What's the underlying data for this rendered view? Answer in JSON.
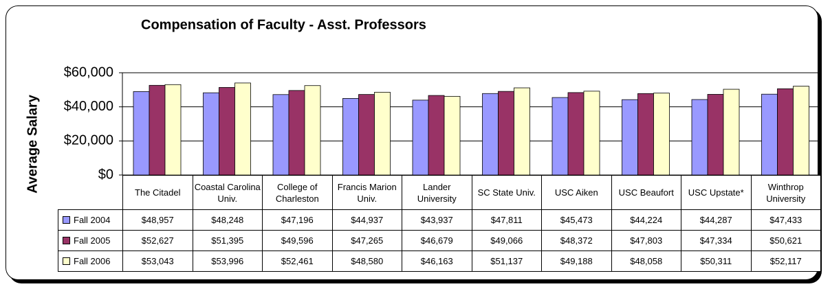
{
  "chart_data": {
    "type": "bar",
    "title": "Compensation of Faculty - Asst. Professors",
    "y_label": "Average Salary",
    "categories": [
      "The Citadel",
      "Coastal Carolina Univ.",
      "College of Charleston",
      "Francis Marion Univ.",
      "Lander University",
      "SC State Univ.",
      "USC Aiken",
      "USC Beaufort",
      "USC Upstate*",
      "Winthrop University"
    ],
    "series": [
      {
        "name": "Fall 2004",
        "color": "#9999ff",
        "values": [
          48957,
          48248,
          47196,
          44937,
          43937,
          47811,
          45473,
          44224,
          44287,
          47433
        ],
        "value_labels": [
          "$48,957",
          "$48,248",
          "$47,196",
          "$44,937",
          "$43,937",
          "$47,811",
          "$45,473",
          "$44,224",
          "$44,287",
          "$47,433"
        ]
      },
      {
        "name": "Fall 2005",
        "color": "#993366",
        "values": [
          52627,
          51395,
          49596,
          47265,
          46679,
          49066,
          48372,
          47803,
          47334,
          50621
        ],
        "value_labels": [
          "$52,627",
          "$51,395",
          "$49,596",
          "$47,265",
          "$46,679",
          "$49,066",
          "$48,372",
          "$47,803",
          "$47,334",
          "$50,621"
        ]
      },
      {
        "name": "Fall 2006",
        "color": "#ffffcc",
        "values": [
          53043,
          53996,
          52461,
          48580,
          46163,
          51137,
          49188,
          48058,
          50311,
          52117
        ],
        "value_labels": [
          "$53,043",
          "$53,996",
          "$52,461",
          "$48,580",
          "$46,163",
          "$51,137",
          "$49,188",
          "$48,058",
          "$50,311",
          "$52,117"
        ]
      }
    ],
    "ylim": [
      0,
      60000
    ],
    "yticks": [
      {
        "value": 0,
        "label": "$0"
      },
      {
        "value": 20000,
        "label": "$20,000"
      },
      {
        "value": 40000,
        "label": "$40,000"
      },
      {
        "value": 60000,
        "label": "$60,000"
      }
    ],
    "grid": true
  }
}
